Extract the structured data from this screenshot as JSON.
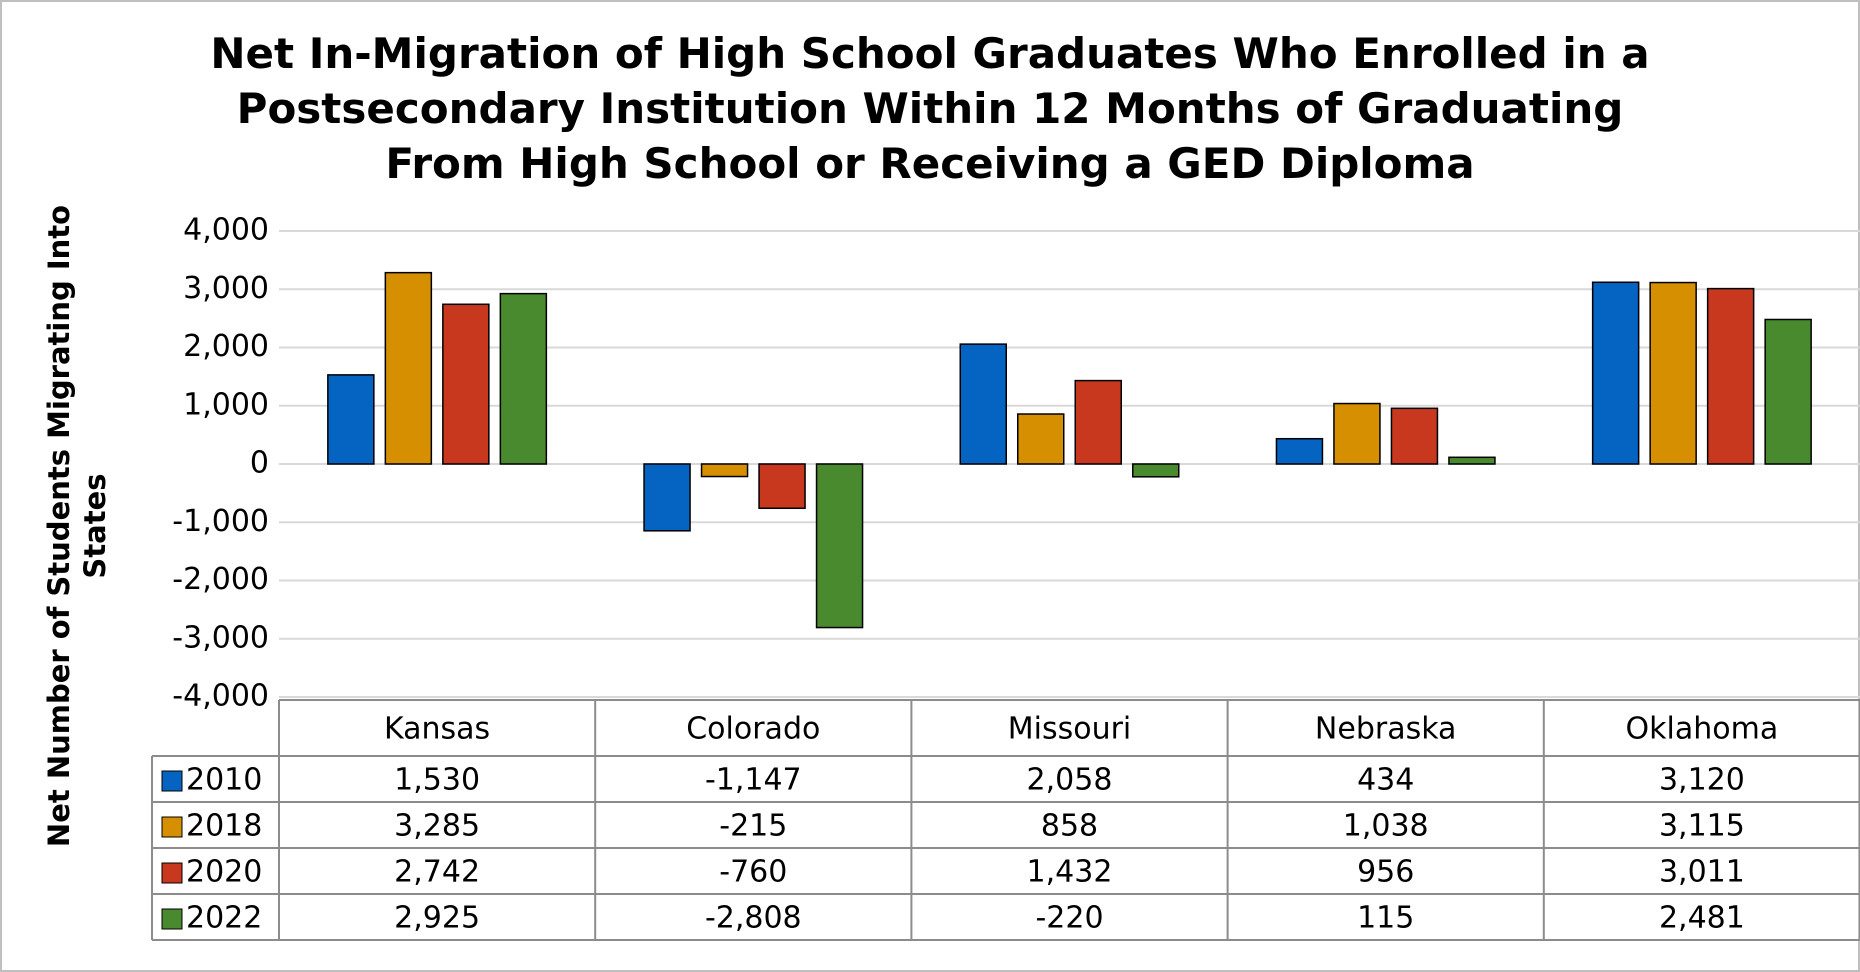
{
  "chart_data": {
    "type": "bar",
    "title": "Net In-Migration of High School Graduates Who Enrolled in a Postsecondary Institution Within 12 Months of Graduating From High School or Receiving a GED Diploma",
    "y_label": "Net Number of Students Migrating Into States",
    "categories": [
      "Kansas",
      "Colorado",
      "Missouri",
      "Nebraska",
      "Oklahoma"
    ],
    "series": [
      {
        "name": "2010",
        "color": "#0563c1",
        "values": [
          1530,
          -1147,
          2058,
          434,
          3120
        ],
        "value_labels": [
          "1,530",
          "-1,147",
          "2,058",
          "434",
          "3,120"
        ]
      },
      {
        "name": "2018",
        "color": "#d68f00",
        "values": [
          3285,
          -215,
          858,
          1038,
          3115
        ],
        "value_labels": [
          "3,285",
          "-215",
          "858",
          "1,038",
          "3,115"
        ]
      },
      {
        "name": "2020",
        "color": "#c8381e",
        "values": [
          2742,
          -760,
          1432,
          956,
          3011
        ],
        "value_labels": [
          "2,742",
          "-760",
          "1,432",
          "956",
          "3,011"
        ]
      },
      {
        "name": "2022",
        "color": "#4a8a2e",
        "values": [
          2925,
          -2808,
          -220,
          115,
          2481
        ],
        "value_labels": [
          "2,925",
          "-2,808",
          "-220",
          "115",
          "2,481"
        ]
      }
    ],
    "ylim": [
      -4000,
      4000
    ],
    "yticks": [
      {
        "value": -4000,
        "label": "-4,000"
      },
      {
        "value": -3000,
        "label": "-3,000"
      },
      {
        "value": -2000,
        "label": "-2,000"
      },
      {
        "value": -1000,
        "label": "-1,000"
      },
      0,
      {
        "value": 1000,
        "label": "1,000"
      },
      {
        "value": 2000,
        "label": "2,000"
      },
      {
        "value": 3000,
        "label": "3,000"
      },
      {
        "value": 4000,
        "label": "4,000"
      }
    ],
    "grid": true
  }
}
